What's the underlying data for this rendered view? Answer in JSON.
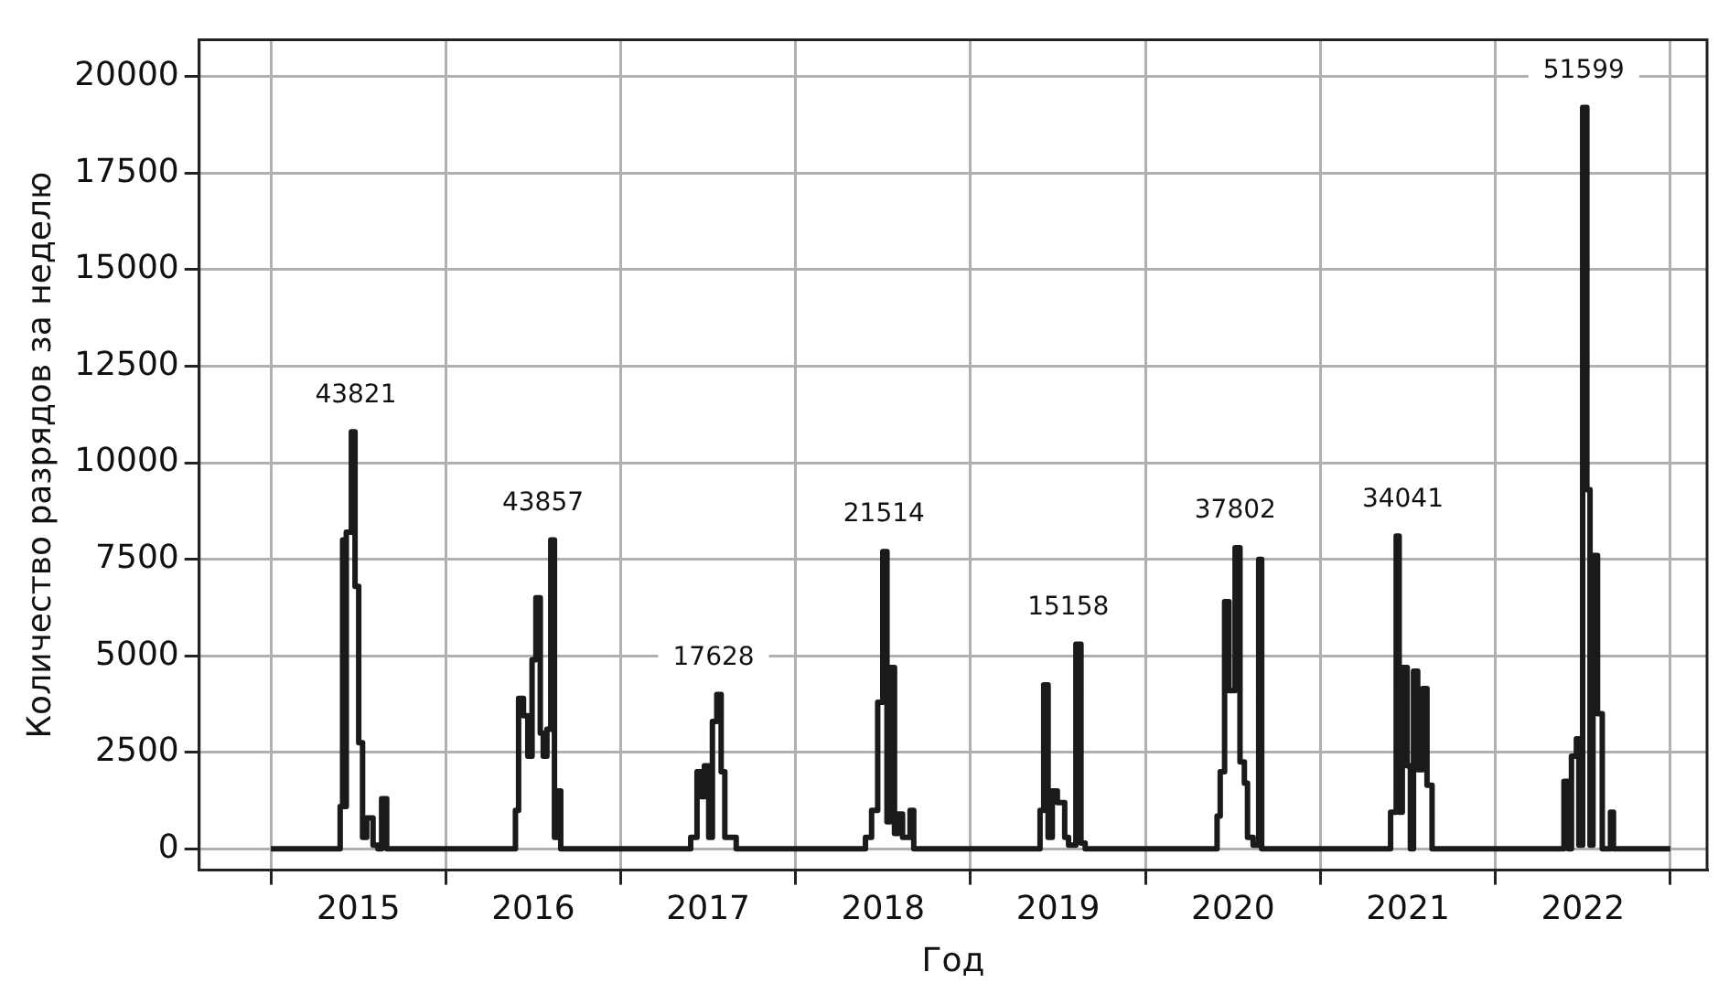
{
  "chart_data": {
    "type": "step",
    "xlabel": "Год",
    "ylabel": "Количество разрядов за неделю",
    "x": [
      2015.0,
      2015.396,
      2015.41,
      2015.42,
      2015.431,
      2015.46,
      2015.481,
      2015.502,
      2015.524,
      2015.548,
      2015.584,
      2015.612,
      2015.633,
      2015.662,
      2016.398,
      2016.416,
      2016.444,
      2016.469,
      2016.493,
      2016.515,
      2016.54,
      2016.557,
      2016.578,
      2016.6,
      2016.621,
      2016.639,
      2016.657,
      2017.4,
      2017.436,
      2017.46,
      2017.478,
      2017.503,
      2017.524,
      2017.549,
      2017.574,
      2017.595,
      2017.66,
      2018.399,
      2018.434,
      2018.469,
      2018.498,
      2018.522,
      2018.54,
      2018.565,
      2018.586,
      2018.611,
      2018.654,
      2018.675,
      2019.397,
      2019.418,
      2019.443,
      2019.467,
      2019.496,
      2019.538,
      2019.56,
      2019.602,
      2019.631,
      2019.655,
      2020.409,
      2020.427,
      2020.452,
      2020.477,
      2020.512,
      2020.54,
      2020.565,
      2020.583,
      2020.615,
      2020.647,
      2020.664,
      2021.401,
      2021.433,
      2021.45,
      2021.468,
      2021.496,
      2021.514,
      2021.532,
      2021.556,
      2021.585,
      2021.609,
      2021.638,
      2022.392,
      2022.417,
      2022.435,
      2022.463,
      2022.477,
      2022.499,
      2022.523,
      2022.541,
      2022.558,
      2022.584,
      2022.611,
      2022.658,
      2022.675,
      2023.0
    ],
    "values": [
      0,
      1100,
      8000,
      1100,
      8200,
      10800,
      6800,
      2750,
      300,
      800,
      100,
      0,
      1300,
      0,
      1000,
      3900,
      3450,
      2400,
      4900,
      6500,
      3000,
      2400,
      3100,
      8000,
      300,
      1500,
      0,
      300,
      2000,
      1350,
      2150,
      300,
      3300,
      4000,
      2000,
      300,
      0,
      300,
      1000,
      3800,
      7700,
      700,
      4700,
      400,
      900,
      300,
      1000,
      0,
      1000,
      4250,
      300,
      1500,
      1200,
      300,
      100,
      5300,
      150,
      0,
      850,
      2000,
      6400,
      4100,
      7800,
      2250,
      1700,
      300,
      100,
      7500,
      0,
      950,
      8100,
      950,
      4700,
      2150,
      0,
      4600,
      2050,
      4150,
      1650,
      0,
      1750,
      0,
      2400,
      2850,
      100,
      19200,
      9300,
      100,
      7600,
      3500,
      0,
      950,
      0,
      0
    ],
    "color": "#1a1a1a",
    "xlim": [
      2014.59,
      2023.21
    ],
    "xticks": [
      {
        "value": 2015,
        "label": null
      },
      {
        "value": 2015.5,
        "label": "2015"
      },
      {
        "value": 2016,
        "label": null
      },
      {
        "value": 2016.5,
        "label": "2016"
      },
      {
        "value": 2017,
        "label": null
      },
      {
        "value": 2017.5,
        "label": "2017"
      },
      {
        "value": 2018,
        "label": null
      },
      {
        "value": 2018.5,
        "label": "2018"
      },
      {
        "value": 2019,
        "label": null
      },
      {
        "value": 2019.5,
        "label": "2019"
      },
      {
        "value": 2020,
        "label": null
      },
      {
        "value": 2020.5,
        "label": "2020"
      },
      {
        "value": 2021,
        "label": null
      },
      {
        "value": 2021.5,
        "label": "2021"
      },
      {
        "value": 2022,
        "label": null
      },
      {
        "value": 2022.5,
        "label": "2022"
      },
      {
        "value": 2023,
        "label": null
      }
    ],
    "ylim": [
      -550,
      20950
    ],
    "yticks": [
      0,
      2500,
      5000,
      7500,
      10000,
      12500,
      15000,
      17500,
      20000
    ],
    "grid": true,
    "legend": false,
    "marker": "none",
    "line_style": "solid",
    "annotations": [
      "43821",
      "43857",
      "17628",
      "21514",
      "15158",
      "37802",
      "34041",
      "51599"
    ]
  }
}
